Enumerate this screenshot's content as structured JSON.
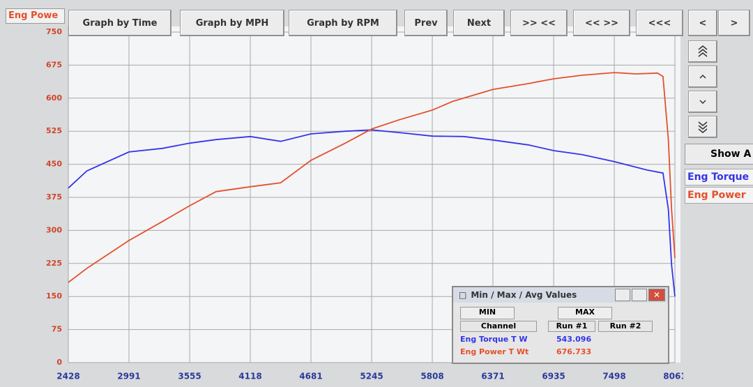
{
  "toolbar": {
    "channel_box": "Eng Powe",
    "buttons": [
      "Graph by Time",
      "Graph by MPH",
      "Graph by RPM",
      "Prev",
      "Next",
      ">> <<",
      "<< >>",
      "<<<",
      "<",
      ">"
    ]
  },
  "chart_data": {
    "type": "line",
    "xlim": [
      2428,
      8061
    ],
    "xticks": [
      2428,
      2991,
      3555,
      4118,
      4681,
      5245,
      5808,
      6371,
      6935,
      7498,
      8061
    ],
    "ylim": [
      0,
      750
    ],
    "yticks": [
      0,
      75,
      150,
      225,
      300,
      375,
      450,
      525,
      600,
      675,
      750
    ],
    "grid": true,
    "series": [
      {
        "name": "Eng Torque",
        "color": "#3434e8",
        "x": [
          2428,
          2600,
          2991,
          3300,
          3555,
          3800,
          4118,
          4400,
          4681,
          5000,
          5245,
          5500,
          5808,
          6100,
          6371,
          6700,
          6935,
          7200,
          7498,
          7800,
          7950,
          8000,
          8030,
          8061
        ],
        "values": [
          396,
          435,
          478,
          486,
          498,
          506,
          513,
          502,
          519,
          525,
          528,
          522,
          514,
          513,
          505,
          494,
          481,
          472,
          456,
          437,
          430,
          348,
          222,
          150
        ]
      },
      {
        "name": "Eng Power",
        "color": "#e4502c",
        "x": [
          2428,
          2600,
          2991,
          3300,
          3555,
          3800,
          4118,
          4400,
          4681,
          5000,
          5245,
          5500,
          5808,
          6000,
          6371,
          6700,
          6935,
          7200,
          7498,
          7700,
          7900,
          7950,
          8000,
          8030,
          8061
        ],
        "values": [
          182,
          214,
          277,
          320,
          356,
          388,
          399,
          408,
          459,
          498,
          530,
          551,
          573,
          593,
          620,
          633,
          644,
          652,
          658,
          655,
          657,
          649,
          506,
          348,
          237
        ]
      }
    ]
  },
  "side_panel": {
    "show_button": "Show A",
    "legend": [
      "Eng Torque",
      "Eng Power"
    ]
  },
  "dialog": {
    "title": "Min / Max / Avg Values",
    "tabs": [
      "MIN",
      "MAX"
    ],
    "headers": [
      "Channel",
      "Run #1",
      "Run #2"
    ],
    "rows": [
      [
        "Eng Torque T W",
        543.096
      ],
      [
        "Eng Power T Wt",
        676.733
      ]
    ]
  }
}
